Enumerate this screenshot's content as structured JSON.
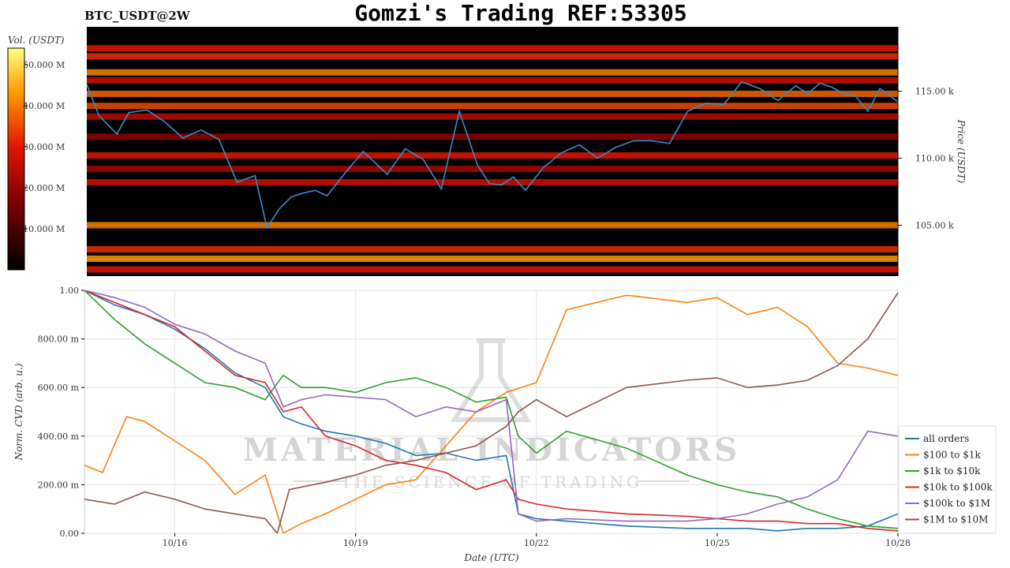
{
  "header": {
    "title": "Gomzi's Trading REF:53305",
    "symbol": "BTC_USDT@2W"
  },
  "watermark": {
    "line1": "MATERIAL INDICATORS",
    "line2": "THE SCIENCE OF TRADING"
  },
  "colors": {
    "price_line": "#3b8bd0",
    "heatmap_bg": "#000000",
    "all_orders": "#1f77b4",
    "100_1k": "#ff7f0e",
    "1k_10k": "#2ca02c",
    "10k_100k": "#d62728",
    "100k_1m": "#9467bd",
    "1m_10m": "#8c564b"
  },
  "chart_data": [
    {
      "type": "heatmap",
      "title": "BTC_USDT@2W",
      "colorbar_label": "Vol. (USDT)",
      "colorbar_ticks": [
        "10.000 M",
        "20.000 M",
        "30.000 M",
        "40.000 M",
        "50.000 M"
      ],
      "colorbar_range": [
        0,
        54
      ],
      "ylabel": "Price (USDT)",
      "y_ticks": [
        "105.00 k",
        "110.00 k",
        "115.00 k"
      ],
      "ylim": [
        101200,
        119800
      ],
      "xlim": [
        "10/14 12:00",
        "10/28"
      ],
      "price_series": {
        "x_days": [
          0,
          0.2,
          0.5,
          0.7,
          1.0,
          1.3,
          1.6,
          1.9,
          2.2,
          2.5,
          2.8,
          3.0,
          3.2,
          3.4,
          3.6,
          3.8,
          4.0,
          4.3,
          4.6,
          5.0,
          5.3,
          5.6,
          5.9,
          6.2,
          6.5,
          6.7,
          6.9,
          7.1,
          7.3,
          7.6,
          7.9,
          8.2,
          8.5,
          8.8,
          9.1,
          9.4,
          9.7,
          10.0,
          10.3,
          10.6,
          10.9,
          11.2,
          11.5,
          11.8,
          12.0,
          12.2,
          12.4,
          12.6,
          12.8,
          13.0,
          13.2,
          13.5
        ],
        "y": [
          115500,
          113200,
          111800,
          113400,
          113600,
          112700,
          111500,
          112100,
          111400,
          108200,
          108700,
          104800,
          106200,
          107100,
          107400,
          107600,
          107200,
          108900,
          110500,
          108800,
          110700,
          109900,
          107700,
          113500,
          109500,
          108100,
          108000,
          108600,
          107600,
          109300,
          110400,
          111000,
          110000,
          110800,
          111300,
          111300,
          111100,
          113500,
          114100,
          114000,
          115700,
          115200,
          114300,
          115400,
          114800,
          115600,
          115300,
          114800,
          114600,
          113500,
          115200,
          114200
        ]
      },
      "heatmap_bands": [
        {
          "price": 118200,
          "intensity": 0.55
        },
        {
          "price": 117600,
          "intensity": 0.6
        },
        {
          "price": 116400,
          "intensity": 0.75
        },
        {
          "price": 115800,
          "intensity": 0.5
        },
        {
          "price": 114800,
          "intensity": 0.7
        },
        {
          "price": 113900,
          "intensity": 0.65
        },
        {
          "price": 113100,
          "intensity": 0.45
        },
        {
          "price": 111600,
          "intensity": 0.35
        },
        {
          "price": 110200,
          "intensity": 0.55
        },
        {
          "price": 109200,
          "intensity": 0.4
        },
        {
          "price": 108200,
          "intensity": 0.5
        },
        {
          "price": 105000,
          "intensity": 0.75
        },
        {
          "price": 103200,
          "intensity": 0.6
        },
        {
          "price": 102500,
          "intensity": 0.8
        },
        {
          "price": 101700,
          "intensity": 0.55
        }
      ]
    },
    {
      "type": "line",
      "xlabel": "Date (UTC)",
      "ylabel": "Norm. CVD (arb. u.)",
      "x_tick_labels": [
        "10/16",
        "10/19",
        "10/22",
        "10/25",
        "10/28"
      ],
      "x_tick_days": [
        1.5,
        4.5,
        7.5,
        10.5,
        13.5
      ],
      "xlim_days": [
        0,
        13.5
      ],
      "ylim": [
        0,
        1
      ],
      "y_tick_labels": [
        "0.00",
        "200.00 m",
        "400.00 m",
        "600.00 m",
        "800.00 m",
        "1.00"
      ],
      "y_tick_values": [
        0,
        0.2,
        0.4,
        0.6,
        0.8,
        1.0
      ],
      "legend_position": "right",
      "series": [
        {
          "name": "all orders",
          "key": "all_orders",
          "x": [
            0,
            0.5,
            1.0,
            1.5,
            2.0,
            2.5,
            3.0,
            3.3,
            3.6,
            4.0,
            4.5,
            5.0,
            5.5,
            6.0,
            6.5,
            7.0,
            7.2,
            7.5,
            8.0,
            9.0,
            10.0,
            10.5,
            11.0,
            11.5,
            12.0,
            12.5,
            13.0,
            13.5
          ],
          "y": [
            1.0,
            0.94,
            0.9,
            0.84,
            0.76,
            0.66,
            0.6,
            0.48,
            0.45,
            0.42,
            0.4,
            0.37,
            0.32,
            0.33,
            0.3,
            0.32,
            0.08,
            0.06,
            0.05,
            0.03,
            0.02,
            0.02,
            0.02,
            0.01,
            0.02,
            0.02,
            0.03,
            0.08
          ]
        },
        {
          "name": "$100 to $1k",
          "key": "100_1k",
          "x": [
            0,
            0.3,
            0.7,
            1.0,
            1.5,
            2.0,
            2.5,
            3.0,
            3.3,
            3.6,
            4.0,
            4.5,
            5.0,
            5.5,
            6.0,
            6.5,
            7.0,
            7.5,
            8.0,
            9.0,
            10.0,
            10.5,
            11.0,
            11.5,
            12.0,
            12.5,
            13.0,
            13.5
          ],
          "y": [
            0.28,
            0.25,
            0.48,
            0.46,
            0.38,
            0.3,
            0.16,
            0.24,
            0.0,
            0.04,
            0.08,
            0.14,
            0.2,
            0.22,
            0.36,
            0.5,
            0.58,
            0.62,
            0.92,
            0.98,
            0.95,
            0.97,
            0.9,
            0.93,
            0.85,
            0.7,
            0.68,
            0.65
          ]
        },
        {
          "name": "$1k to $10k",
          "key": "1k_10k",
          "x": [
            0,
            0.5,
            1.0,
            1.5,
            2.0,
            2.5,
            3.0,
            3.3,
            3.6,
            4.0,
            4.5,
            5.0,
            5.5,
            6.0,
            6.5,
            7.0,
            7.2,
            7.5,
            8.0,
            9.0,
            10.0,
            10.5,
            11.0,
            11.5,
            12.0,
            12.5,
            13.0,
            13.5
          ],
          "y": [
            1.0,
            0.88,
            0.78,
            0.7,
            0.62,
            0.6,
            0.55,
            0.65,
            0.6,
            0.6,
            0.58,
            0.62,
            0.64,
            0.6,
            0.54,
            0.56,
            0.4,
            0.33,
            0.42,
            0.35,
            0.24,
            0.2,
            0.17,
            0.15,
            0.1,
            0.06,
            0.03,
            0.02
          ]
        },
        {
          "name": "$10k to $100k",
          "key": "10k_100k",
          "x": [
            0,
            0.5,
            1.0,
            1.5,
            2.0,
            2.5,
            3.0,
            3.3,
            3.6,
            4.0,
            4.5,
            5.0,
            5.5,
            6.0,
            6.5,
            7.0,
            7.2,
            7.5,
            8.0,
            9.0,
            10.0,
            10.5,
            11.0,
            11.5,
            12.0,
            12.5,
            13.0,
            13.5
          ],
          "y": [
            1.0,
            0.95,
            0.9,
            0.85,
            0.75,
            0.65,
            0.62,
            0.5,
            0.52,
            0.4,
            0.36,
            0.3,
            0.28,
            0.25,
            0.18,
            0.22,
            0.14,
            0.12,
            0.1,
            0.08,
            0.07,
            0.06,
            0.05,
            0.05,
            0.04,
            0.04,
            0.02,
            0.01
          ]
        },
        {
          "name": "$100k to $1M",
          "key": "100k_1m",
          "x": [
            0,
            0.5,
            1.0,
            1.5,
            2.0,
            2.5,
            3.0,
            3.3,
            3.6,
            4.0,
            4.5,
            5.0,
            5.5,
            6.0,
            6.5,
            7.0,
            7.2,
            7.5,
            8.0,
            9.0,
            10.0,
            10.5,
            11.0,
            11.5,
            12.0,
            12.5,
            13.0,
            13.5
          ],
          "y": [
            1.0,
            0.97,
            0.93,
            0.86,
            0.82,
            0.75,
            0.7,
            0.52,
            0.55,
            0.57,
            0.56,
            0.55,
            0.48,
            0.52,
            0.5,
            0.55,
            0.08,
            0.05,
            0.06,
            0.05,
            0.05,
            0.06,
            0.08,
            0.12,
            0.15,
            0.22,
            0.42,
            0.4
          ]
        },
        {
          "name": "$1M to $10M",
          "key": "1m_10m",
          "x": [
            0,
            0.5,
            1.0,
            1.5,
            2.0,
            2.5,
            3.0,
            3.2,
            3.4,
            3.6,
            4.0,
            4.5,
            5.0,
            5.5,
            6.0,
            6.5,
            7.0,
            7.2,
            7.5,
            8.0,
            9.0,
            10.0,
            10.5,
            11.0,
            11.5,
            12.0,
            12.5,
            13.0,
            13.5
          ],
          "y": [
            0.14,
            0.12,
            0.17,
            0.14,
            0.1,
            0.08,
            0.06,
            0.0,
            0.18,
            0.19,
            0.21,
            0.24,
            0.28,
            0.3,
            0.33,
            0.36,
            0.44,
            0.5,
            0.55,
            0.48,
            0.6,
            0.63,
            0.64,
            0.6,
            0.61,
            0.63,
            0.69,
            0.8,
            0.99
          ]
        }
      ]
    }
  ]
}
